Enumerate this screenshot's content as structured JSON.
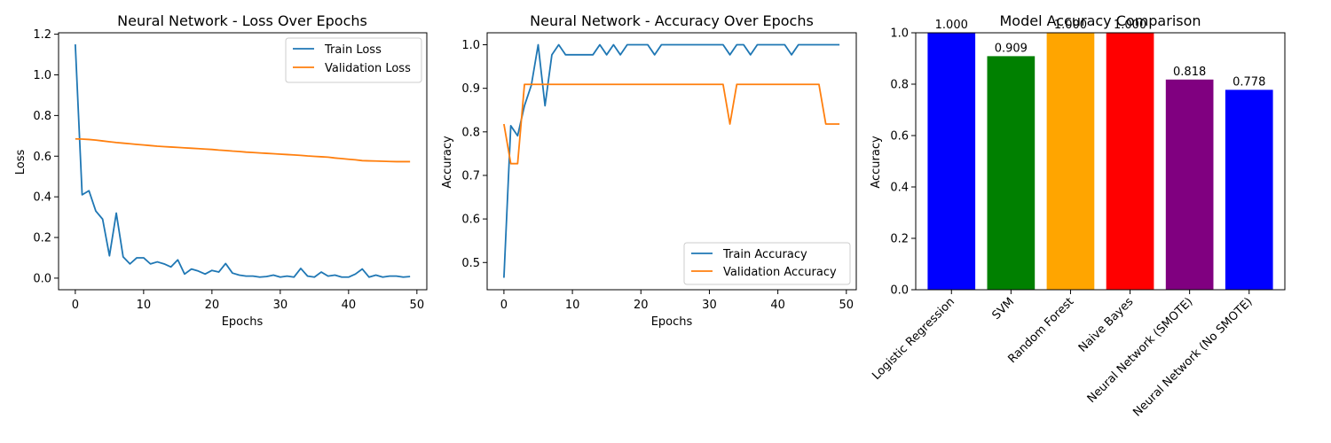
{
  "chart_data": [
    {
      "type": "line",
      "title": "Neural Network - Loss Over Epochs",
      "xlabel": "Epochs",
      "ylabel": "Loss",
      "xlim": [
        -2.45,
        51.45
      ],
      "ylim": [
        -0.057,
        1.207
      ],
      "xticks": [
        0,
        10,
        20,
        30,
        40,
        50
      ],
      "yticks": [
        0.0,
        0.2,
        0.4,
        0.6,
        0.8,
        1.0,
        1.2
      ],
      "ytick_decimals": 1,
      "legend_position": "upper right",
      "grid": false,
      "series": [
        {
          "name": "Train Loss",
          "color": "#1f77b4",
          "x": [
            0,
            1,
            2,
            3,
            4,
            5,
            6,
            7,
            8,
            9,
            10,
            11,
            12,
            13,
            14,
            15,
            16,
            17,
            18,
            19,
            20,
            21,
            22,
            23,
            24,
            25,
            26,
            27,
            28,
            29,
            30,
            31,
            32,
            33,
            34,
            35,
            36,
            37,
            38,
            39,
            40,
            41,
            42,
            43,
            44,
            45,
            46,
            47,
            48,
            49
          ],
          "values": [
            1.15,
            0.41,
            0.43,
            0.33,
            0.29,
            0.11,
            0.32,
            0.105,
            0.07,
            0.1,
            0.1,
            0.07,
            0.08,
            0.07,
            0.055,
            0.09,
            0.02,
            0.045,
            0.035,
            0.02,
            0.038,
            0.03,
            0.072,
            0.025,
            0.015,
            0.01,
            0.01,
            0.005,
            0.008,
            0.015,
            0.005,
            0.01,
            0.005,
            0.048,
            0.01,
            0.005,
            0.03,
            0.01,
            0.015,
            0.005,
            0.005,
            0.02,
            0.045,
            0.005,
            0.015,
            0.005,
            0.01,
            0.01,
            0.005,
            0.008
          ]
        },
        {
          "name": "Validation Loss",
          "color": "#ff7f0e",
          "x": [
            0,
            1,
            2,
            3,
            4,
            5,
            6,
            7,
            8,
            9,
            10,
            11,
            12,
            13,
            14,
            15,
            16,
            17,
            18,
            19,
            20,
            21,
            22,
            23,
            24,
            25,
            26,
            27,
            28,
            29,
            30,
            31,
            32,
            33,
            34,
            35,
            36,
            37,
            38,
            39,
            40,
            41,
            42,
            43,
            44,
            45,
            46,
            47,
            48,
            49
          ],
          "values": [
            0.685,
            0.684,
            0.682,
            0.679,
            0.675,
            0.671,
            0.667,
            0.664,
            0.661,
            0.658,
            0.655,
            0.652,
            0.649,
            0.647,
            0.645,
            0.643,
            0.641,
            0.639,
            0.637,
            0.635,
            0.633,
            0.63,
            0.628,
            0.625,
            0.623,
            0.62,
            0.618,
            0.616,
            0.614,
            0.612,
            0.61,
            0.608,
            0.606,
            0.604,
            0.601,
            0.599,
            0.597,
            0.595,
            0.591,
            0.588,
            0.585,
            0.582,
            0.578,
            0.577,
            0.576,
            0.575,
            0.574,
            0.573,
            0.573,
            0.573
          ]
        }
      ]
    },
    {
      "type": "line",
      "title": "Neural Network - Accuracy Over Epochs",
      "xlabel": "Epochs",
      "ylabel": "Accuracy",
      "xlim": [
        -2.45,
        51.45
      ],
      "ylim": [
        0.4375,
        1.0275
      ],
      "xticks": [
        0,
        10,
        20,
        30,
        40,
        50
      ],
      "yticks": [
        0.5,
        0.6,
        0.7,
        0.8,
        0.9,
        1.0
      ],
      "ytick_decimals": 1,
      "legend_position": "lower right",
      "grid": false,
      "series": [
        {
          "name": "Train Accuracy",
          "color": "#1f77b4",
          "x": [
            0,
            1,
            2,
            3,
            4,
            5,
            6,
            7,
            8,
            9,
            10,
            11,
            12,
            13,
            14,
            15,
            16,
            17,
            18,
            19,
            20,
            21,
            22,
            23,
            24,
            25,
            26,
            27,
            28,
            29,
            30,
            31,
            32,
            33,
            34,
            35,
            36,
            37,
            38,
            39,
            40,
            41,
            42,
            43,
            44,
            45,
            46,
            47,
            48,
            49
          ],
          "values": [
            0.465,
            0.814,
            0.791,
            0.86,
            0.907,
            1.0,
            0.86,
            0.977,
            1.0,
            0.977,
            0.977,
            0.977,
            0.977,
            0.977,
            1.0,
            0.977,
            1.0,
            0.977,
            1.0,
            1.0,
            1.0,
            1.0,
            0.977,
            1.0,
            1.0,
            1.0,
            1.0,
            1.0,
            1.0,
            1.0,
            1.0,
            1.0,
            1.0,
            0.977,
            1.0,
            1.0,
            0.977,
            1.0,
            1.0,
            1.0,
            1.0,
            1.0,
            0.977,
            1.0,
            1.0,
            1.0,
            1.0,
            1.0,
            1.0,
            1.0
          ]
        },
        {
          "name": "Validation Accuracy",
          "color": "#ff7f0e",
          "x": [
            0,
            1,
            2,
            3,
            4,
            5,
            6,
            7,
            8,
            9,
            10,
            11,
            12,
            13,
            14,
            15,
            16,
            17,
            18,
            19,
            20,
            21,
            22,
            23,
            24,
            25,
            26,
            27,
            28,
            29,
            30,
            31,
            32,
            33,
            34,
            35,
            36,
            37,
            38,
            39,
            40,
            41,
            42,
            43,
            44,
            45,
            46,
            47,
            48,
            49
          ],
          "values": [
            0.818,
            0.727,
            0.727,
            0.909,
            0.909,
            0.909,
            0.909,
            0.909,
            0.909,
            0.909,
            0.909,
            0.909,
            0.909,
            0.909,
            0.909,
            0.909,
            0.909,
            0.909,
            0.909,
            0.909,
            0.909,
            0.909,
            0.909,
            0.909,
            0.909,
            0.909,
            0.909,
            0.909,
            0.909,
            0.909,
            0.909,
            0.909,
            0.909,
            0.818,
            0.909,
            0.909,
            0.909,
            0.909,
            0.909,
            0.909,
            0.909,
            0.909,
            0.909,
            0.909,
            0.909,
            0.909,
            0.909,
            0.818,
            0.818,
            0.818
          ]
        }
      ]
    },
    {
      "type": "bar",
      "title": "Model Accuracy Comparison",
      "xlabel": "",
      "ylabel": "Accuracy",
      "ylim": [
        0,
        1
      ],
      "yticks": [
        0.0,
        0.2,
        0.4,
        0.6,
        0.8,
        1.0
      ],
      "ytick_decimals": 1,
      "xtick_rotation": 45,
      "grid": false,
      "categories": [
        "Logistic Regression",
        "SVM",
        "Random Forest",
        "Naive Bayes",
        "Neural Network (SMOTE)",
        "Neural Network (No SMOTE)"
      ],
      "values": [
        1.0,
        0.909,
        1.0,
        1.0,
        0.818,
        0.778
      ],
      "value_labels": [
        "1.000",
        "0.909",
        "1.000",
        "1.000",
        "0.818",
        "0.778"
      ],
      "colors": [
        "#0000ff",
        "#008000",
        "#ffa500",
        "#ff0000",
        "#800080",
        "#0000ff"
      ]
    }
  ]
}
